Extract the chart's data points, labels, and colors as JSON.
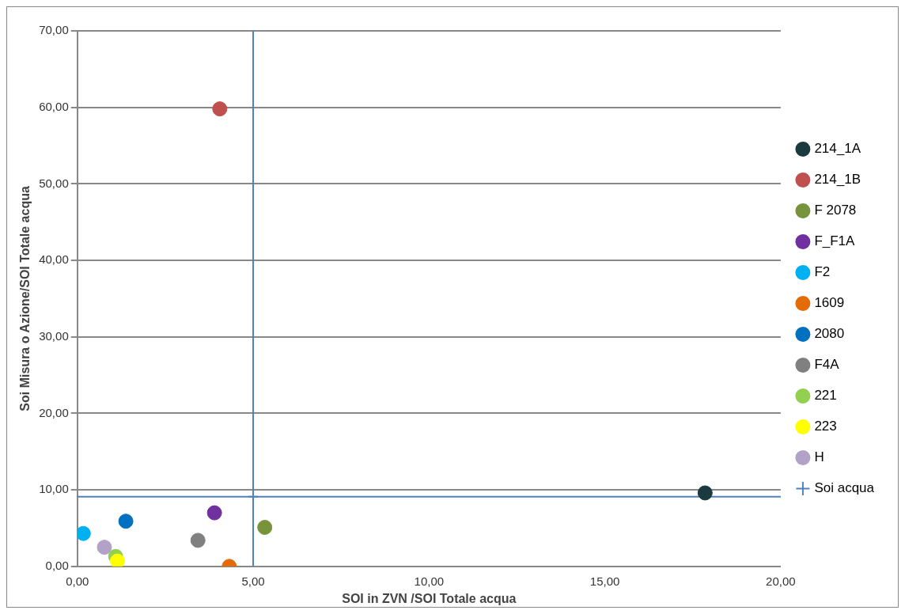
{
  "chart_data": {
    "type": "scatter",
    "xlabel": "SOI in ZVN /SOI Totale acqua",
    "ylabel": "Soi Misura o Azione/SOI Totale acqua",
    "xlim": [
      0,
      20
    ],
    "ylim": [
      0,
      70
    ],
    "xticks": [
      {
        "value": 0,
        "label": "0,00"
      },
      {
        "value": 5,
        "label": "5,00"
      },
      {
        "value": 10,
        "label": "10,00"
      },
      {
        "value": 15,
        "label": "15,00"
      },
      {
        "value": 20,
        "label": "20,00"
      }
    ],
    "yticks": [
      {
        "value": 0,
        "label": "0,00"
      },
      {
        "value": 10,
        "label": "10,00"
      },
      {
        "value": 20,
        "label": "20,00"
      },
      {
        "value": 30,
        "label": "30,00"
      },
      {
        "value": 40,
        "label": "40,00"
      },
      {
        "value": 50,
        "label": "50,00"
      },
      {
        "value": 60,
        "label": "60,00"
      },
      {
        "value": 70,
        "label": "70,00"
      }
    ],
    "grid": "y",
    "legend": "right",
    "marker": "circle",
    "series": [
      {
        "name": "214_1A",
        "color": "#1a3a40",
        "x": [
          17.85
        ],
        "values": [
          9.6
        ]
      },
      {
        "name": "214_1B",
        "color": "#c0504d",
        "x": [
          4.05
        ],
        "values": [
          59.8
        ]
      },
      {
        "name": "F 2078",
        "color": "#77933c",
        "x": [
          5.33
        ],
        "values": [
          5.1
        ]
      },
      {
        "name": "F_F1A",
        "color": "#7030a0",
        "x": [
          3.9
        ],
        "values": [
          7.0
        ]
      },
      {
        "name": "F2",
        "color": "#00b0f0",
        "x": [
          0.17
        ],
        "values": [
          4.3
        ]
      },
      {
        "name": "1609",
        "color": "#e36c09",
        "x": [
          4.32
        ],
        "values": [
          0
        ]
      },
      {
        "name": "2080",
        "color": "#0070c0",
        "x": [
          1.38
        ],
        "values": [
          5.9
        ]
      },
      {
        "name": "F4A",
        "color": "#808080",
        "x": [
          3.43
        ],
        "values": [
          3.4
        ]
      },
      {
        "name": "221",
        "color": "#92d050",
        "x": [
          1.09
        ],
        "values": [
          1.3
        ]
      },
      {
        "name": "223",
        "color": "#ffff00",
        "x": [
          1.14
        ],
        "values": [
          0.7
        ]
      },
      {
        "name": "H",
        "color": "#b3a2c7",
        "x": [
          0.77
        ],
        "values": [
          2.5
        ]
      },
      {
        "name": "Soi acqua",
        "color": "#4f81bd",
        "marker": "cross",
        "x": [
          5
        ],
        "values": [
          9.1
        ],
        "errors": [
          [
            0,
            70
          ]
        ],
        "xerrors": [
          [
            0,
            20
          ]
        ]
      }
    ]
  }
}
